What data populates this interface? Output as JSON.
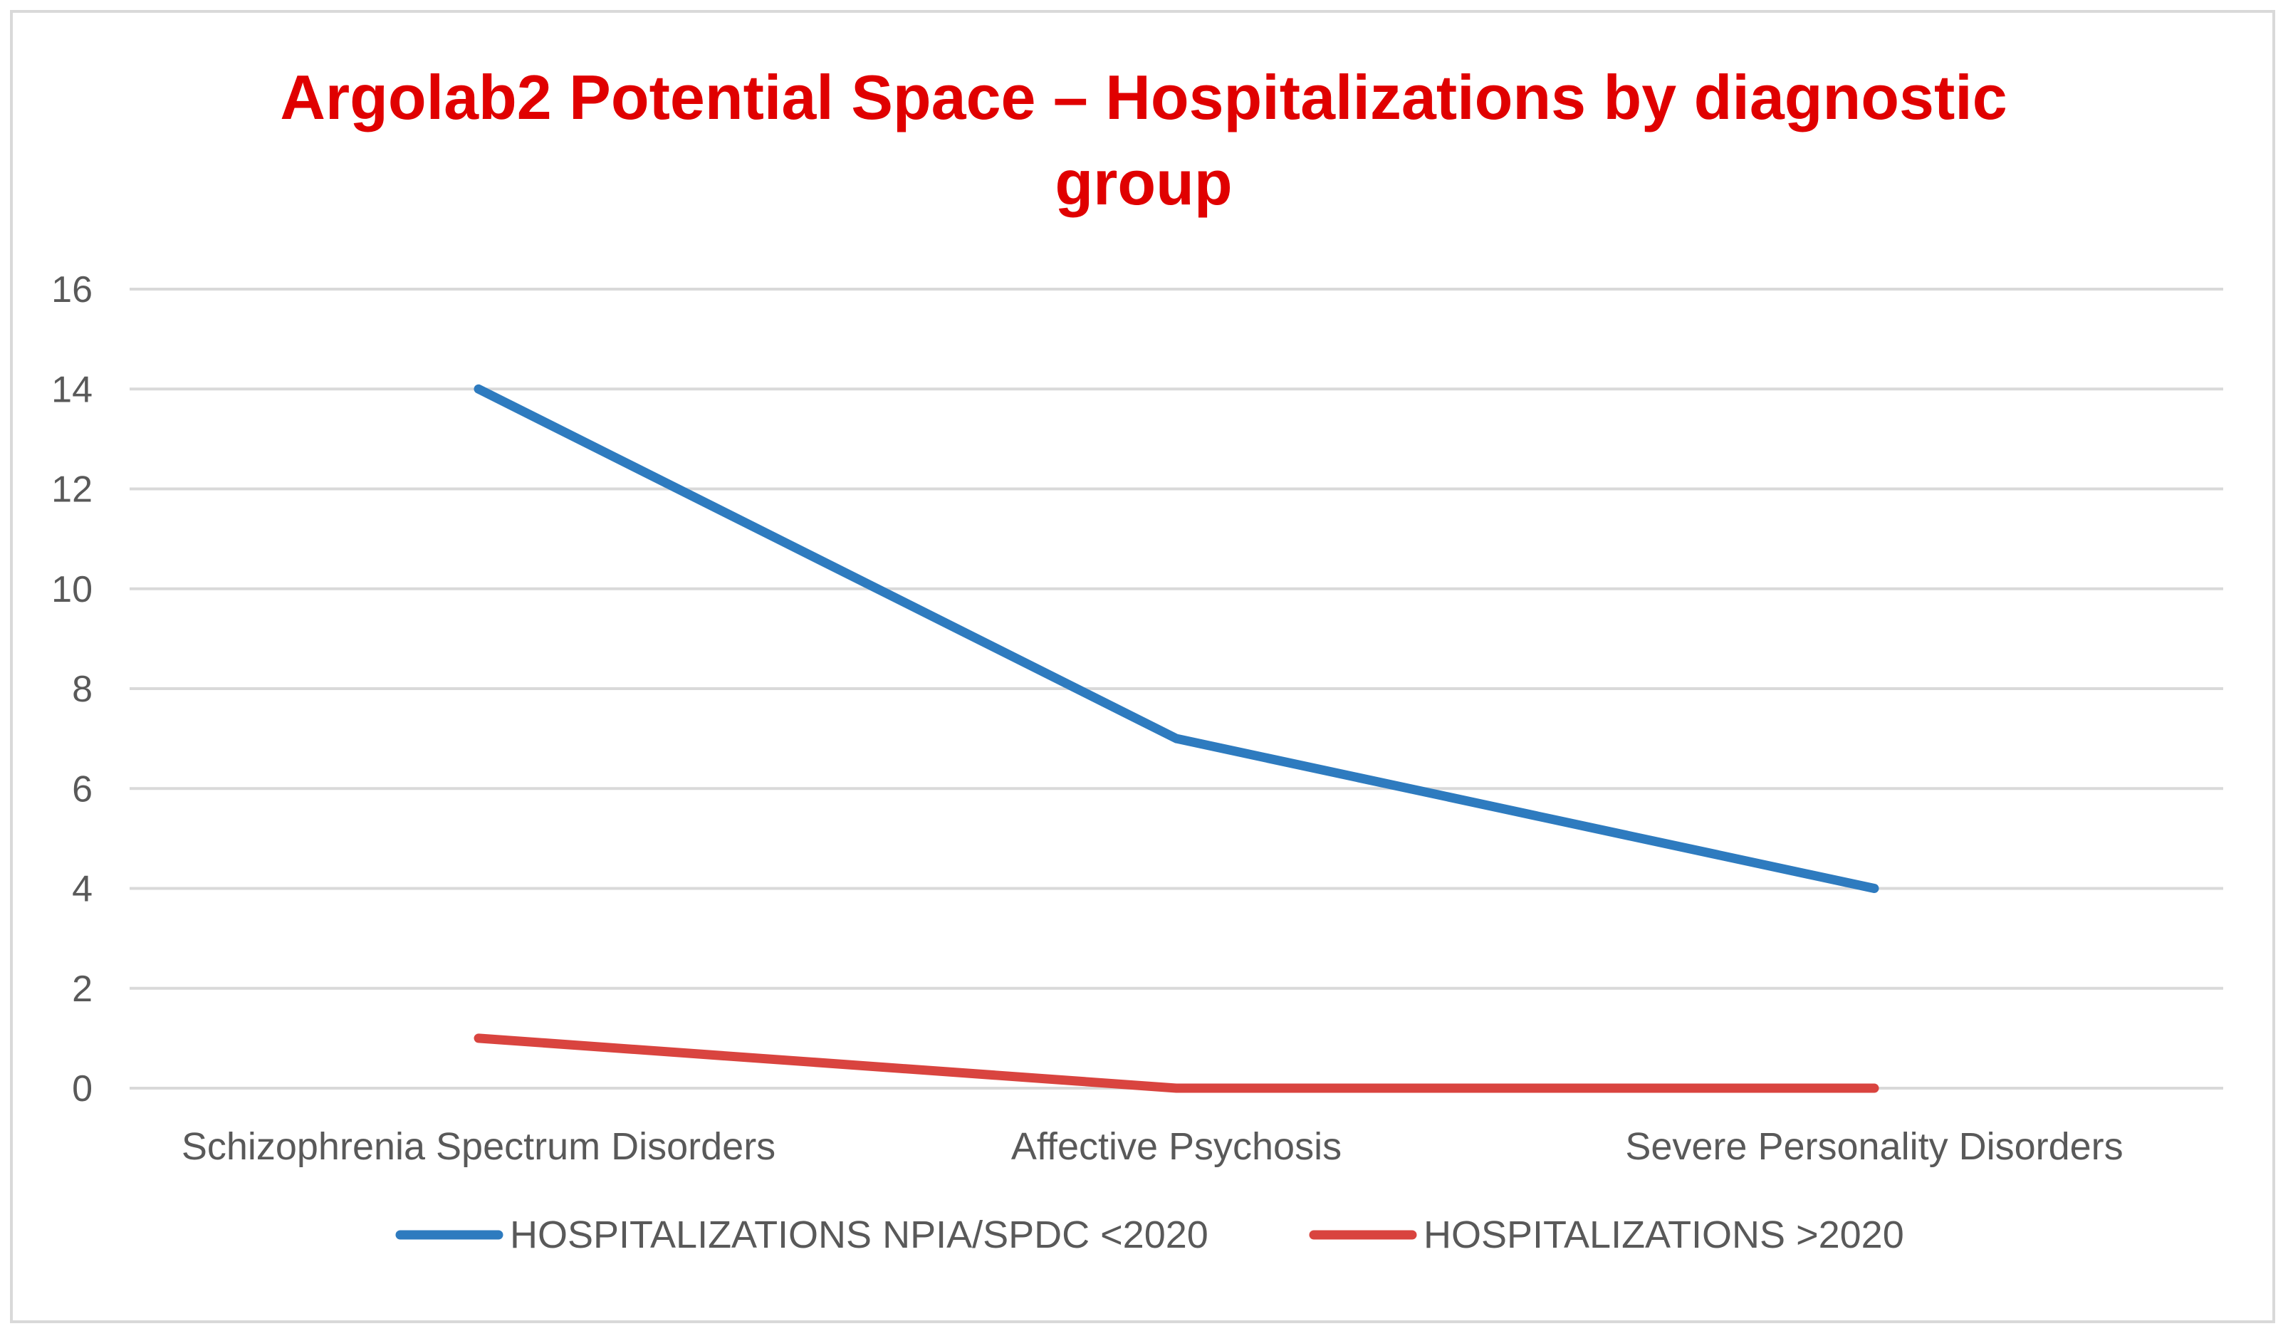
{
  "chart_data": {
    "type": "line",
    "title": "Argolab2 Potential Space – Hospitalizations by diagnostic group",
    "title_lines": [
      "Argolab2 Potential Space – Hospitalizations by diagnostic",
      "group"
    ],
    "categories": [
      "Schizophrenia Spectrum Disorders",
      "Affective Psychosis",
      "Severe Personality Disorders"
    ],
    "series": [
      {
        "name": "HOSPITALIZATIONS NPIA/SPDC <2020",
        "values": [
          14,
          7,
          4
        ],
        "color": "#2e7bbf"
      },
      {
        "name": "HOSPITALIZATIONS >2020",
        "values": [
          1,
          0,
          0
        ],
        "color": "#d9443f"
      }
    ],
    "ylim": [
      0,
      16
    ],
    "yticks": [
      0,
      2,
      4,
      6,
      8,
      10,
      12,
      14,
      16
    ],
    "xlabel": "",
    "ylabel": "",
    "grid": true,
    "legend": "bottom",
    "title_color": "#e00000"
  }
}
